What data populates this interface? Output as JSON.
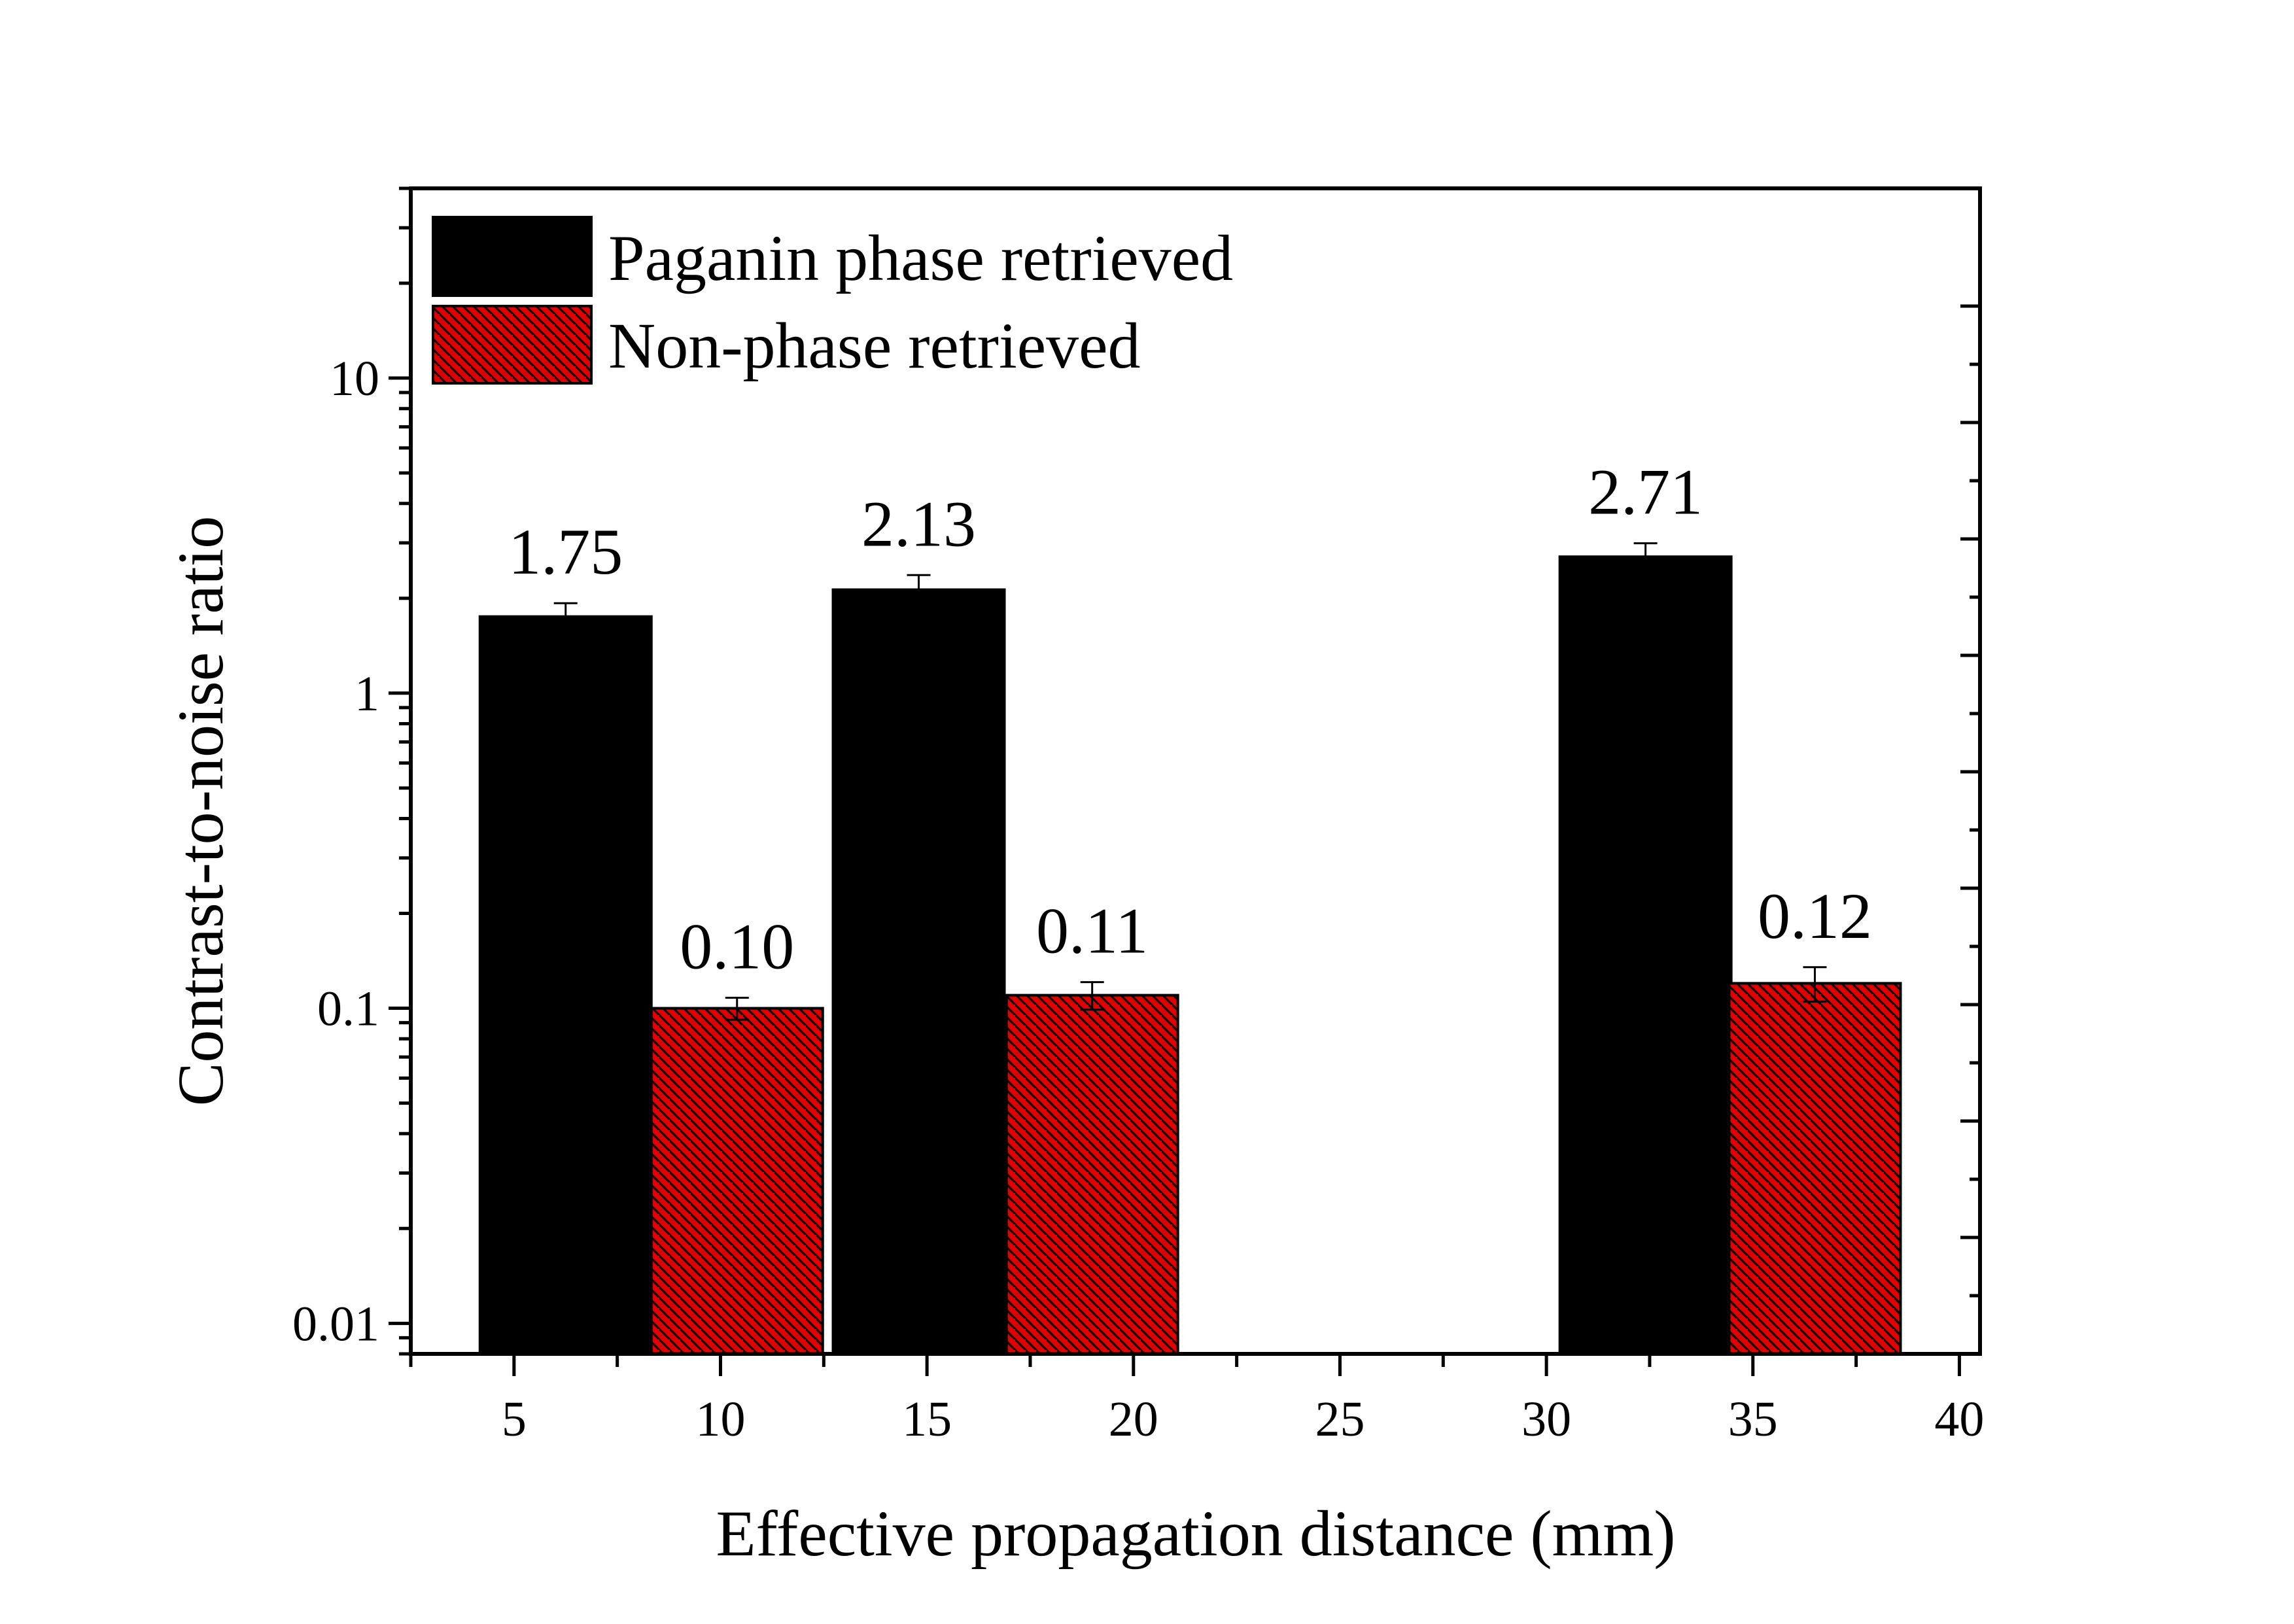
{
  "chart_data": {
    "type": "bar",
    "title": "",
    "xlabel": "Effective propagation distance (mm)",
    "ylabel": "Contrast-to-noise ratio",
    "yscale": "log",
    "xlim": [
      2.5,
      40.5
    ],
    "ylim": [
      0.008,
      40
    ],
    "x_ticks": [
      5,
      10,
      15,
      20,
      25,
      30,
      35,
      40
    ],
    "y_ticks": [
      0.01,
      0.1,
      1,
      10
    ],
    "y_tick_labels": [
      "0.01",
      "0.1",
      "1",
      "10"
    ],
    "grid": false,
    "legend_position": "top-left",
    "series": [
      {
        "name": "Paganin phase retrieved",
        "color": "#000000",
        "pattern": "solid",
        "x": [
          6.25,
          14.8,
          32.4
        ],
        "values": [
          1.75,
          2.13,
          2.71
        ],
        "errors": [
          0.18,
          0.24,
          0.28
        ],
        "labels": [
          "1.75",
          "2.13",
          "2.71"
        ]
      },
      {
        "name": "Non-phase retrieved",
        "color": "#e00000",
        "pattern": "hatched",
        "x": [
          10.4,
          19.0,
          36.5
        ],
        "values": [
          0.1,
          0.11,
          0.12
        ],
        "errors": [
          0.008,
          0.011,
          0.015
        ],
        "labels": [
          "0.10",
          "0.11",
          "0.12"
        ]
      }
    ]
  }
}
